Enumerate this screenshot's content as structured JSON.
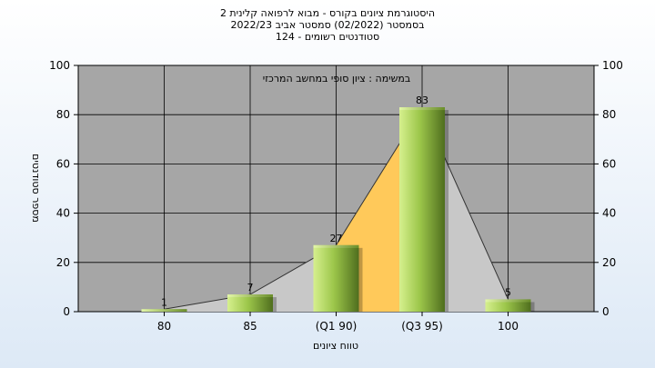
{
  "chart_data": {
    "type": "bar",
    "title_lines": [
      "היסטוגרמת ציונים בקורס - מבוא לרפואה קלינית 2",
      "בסמסטר  (02/2022)  סמסטר אביב 2022/23",
      "סטודנטים רשומים - 124"
    ],
    "inner_label": "במשימה : ציון סופי במחשב המרכזי",
    "categories": [
      "80",
      "85",
      "(Q1 90)",
      "(Q3 95)",
      "100"
    ],
    "values": [
      1,
      7,
      27,
      83,
      5
    ],
    "data_labels": [
      "1",
      "7",
      "27",
      "83",
      "5"
    ],
    "xlabel": "טווח ציונים",
    "ylabel": "מספר סטודנטים",
    "ylim": [
      0,
      100
    ],
    "yticks": [
      0,
      20,
      40,
      60,
      80,
      100
    ],
    "grid": true,
    "colors": {
      "plot_bg": "#a6a6a6",
      "grid": "#000000",
      "bar_light": "#d6f08e",
      "bar_mid": "#8cb83c",
      "bar_dark": "#4f6e1e",
      "area_fill": "#c8c8c8",
      "iqr_fill": "#ffc95a"
    }
  }
}
